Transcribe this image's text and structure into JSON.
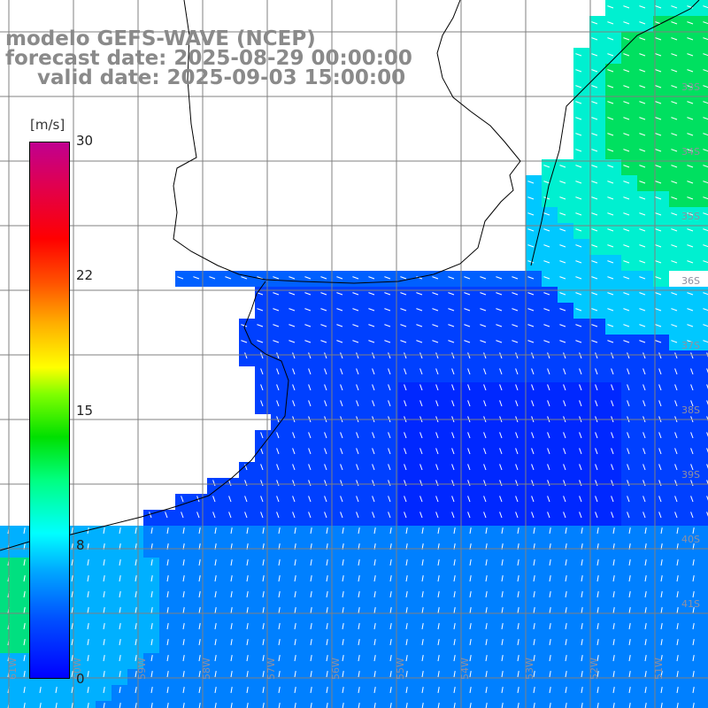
{
  "header": {
    "line1": "modelo GEFS-WAVE (NCEP)",
    "line2": "forecast date: 2025-08-29 00:00:00",
    "line3": "valid date: 2025-09-03 15:00:00"
  },
  "colorbar": {
    "unit": "[m/s]",
    "ticks": [
      "30",
      "22",
      "15",
      "8",
      "0"
    ],
    "min": 0,
    "max": 30,
    "colors": [
      "#0000ff",
      "#00a8ff",
      "#00ffff",
      "#00e000",
      "#ffff00",
      "#ff5000",
      "#ff0000",
      "#c00090"
    ]
  },
  "map": {
    "lat_labels": [
      "33S",
      "34S",
      "35S",
      "36S",
      "37S",
      "38S",
      "39S",
      "40S",
      "41S"
    ],
    "lon_labels": [
      "61W",
      "60W",
      "59W",
      "58W",
      "57W",
      "56W",
      "55W",
      "54W",
      "53W",
      "52W",
      "51W"
    ],
    "land_color": "#ffffff",
    "coast_color": "#000000",
    "grid_color": "#808080",
    "arrow_color": "#ffffff"
  }
}
